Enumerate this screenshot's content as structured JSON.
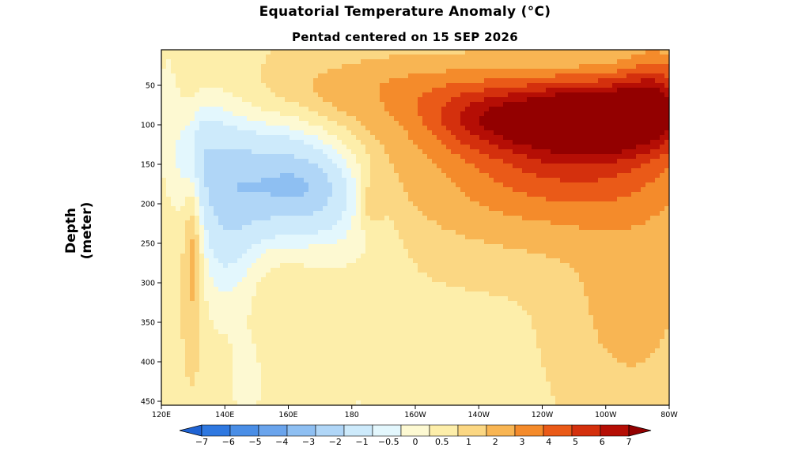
{
  "chart_data": {
    "type": "heatmap",
    "title": "Equatorial Temperature Anomaly (°C)",
    "subtitle": "Pentad centered on 15 SEP 2026",
    "xlabel": "",
    "ylabel": "Depth (meter)",
    "x_ticks": [
      "120E",
      "140E",
      "160E",
      "180",
      "160W",
      "140W",
      "120W",
      "100W",
      "80W"
    ],
    "x_range_lon_east": [
      120,
      280
    ],
    "y_ticks": [
      50,
      100,
      150,
      200,
      250,
      300,
      350,
      400,
      450
    ],
    "y_range_depth": [
      5,
      455
    ],
    "y_reversed": true,
    "colorbar": {
      "levels": [
        -7,
        -6,
        -5,
        -4,
        -3,
        -2,
        -1,
        -0.5,
        0,
        0.5,
        1,
        2,
        3,
        4,
        5,
        6,
        7
      ],
      "labels": [
        "-7",
        "-6",
        "-5",
        "-4",
        "-3",
        "-2",
        "-1",
        "-0.5",
        "0",
        "0.5",
        "1",
        "2",
        "3",
        "4",
        "5",
        "6",
        "7"
      ],
      "colors": [
        "#1f63d4",
        "#2f78e0",
        "#4a8ee6",
        "#6aa4ec",
        "#8ebff2",
        "#b0d6f7",
        "#cdeafb",
        "#e3f7fd",
        "#fdf9d2",
        "#fdeeaa",
        "#fbd783",
        "#f8b553",
        "#f48b2b",
        "#ea5a18",
        "#d4300d",
        "#b50e05",
        "#930000"
      ]
    },
    "features": [
      {
        "name": "warm core",
        "lon": [
          240,
          275
        ],
        "depth": [
          40,
          140
        ],
        "max_anomaly": 7
      },
      {
        "name": "cold tongue",
        "lon": [
          130,
          175
        ],
        "depth": [
          80,
          280
        ],
        "min_anomaly": -4
      },
      {
        "name": "deep warm band",
        "lon": [
          175,
          280
        ],
        "depth": [
          250,
          455
        ],
        "anomaly_approx": 0.5
      }
    ]
  }
}
